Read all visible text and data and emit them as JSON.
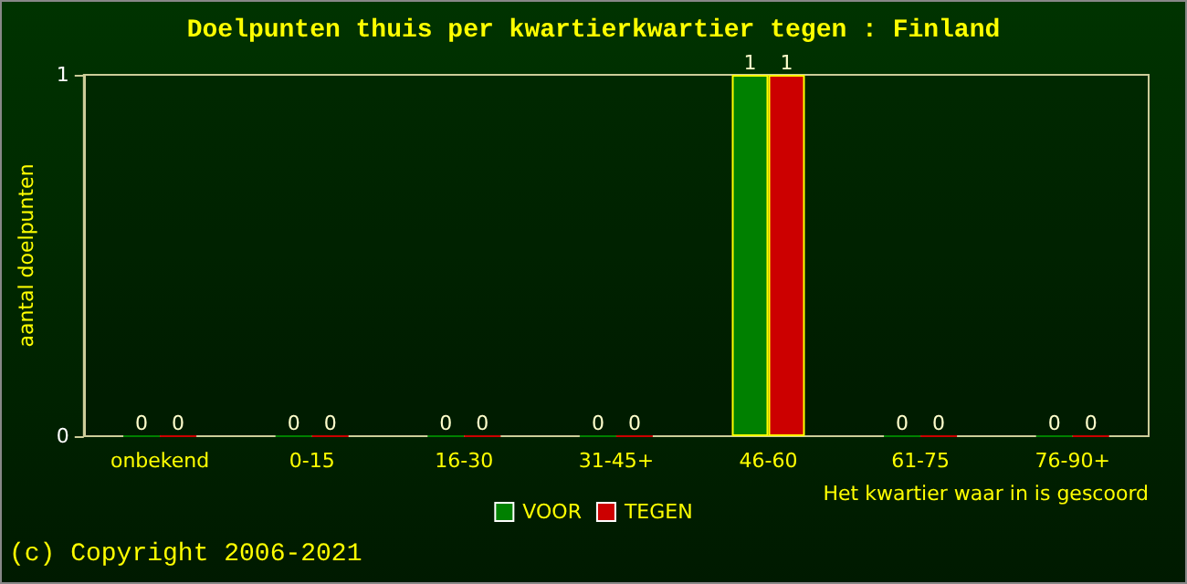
{
  "chart_data": {
    "type": "bar",
    "title": "Doelpunten thuis per kwartierkwartier tegen : Finland",
    "xlabel": "Het kwartier waar in is gescoord",
    "ylabel": "aantal doelpunten",
    "categories": [
      "onbekend",
      "0-15",
      "16-30",
      "31-45+",
      "46-60",
      "61-75",
      "76-90+"
    ],
    "series": [
      {
        "name": "VOOR",
        "color": "#008000",
        "values": [
          0,
          0,
          0,
          0,
          1,
          0,
          0
        ]
      },
      {
        "name": "TEGEN",
        "color": "#cc0000",
        "values": [
          0,
          0,
          0,
          0,
          1,
          0,
          0
        ]
      }
    ],
    "ylim": [
      0,
      1
    ],
    "yticks": [
      0,
      1
    ],
    "grid": false,
    "legend": "bottom",
    "data_labels": true,
    "annotations": [
      "(c) Copyright 2006-2021"
    ]
  }
}
